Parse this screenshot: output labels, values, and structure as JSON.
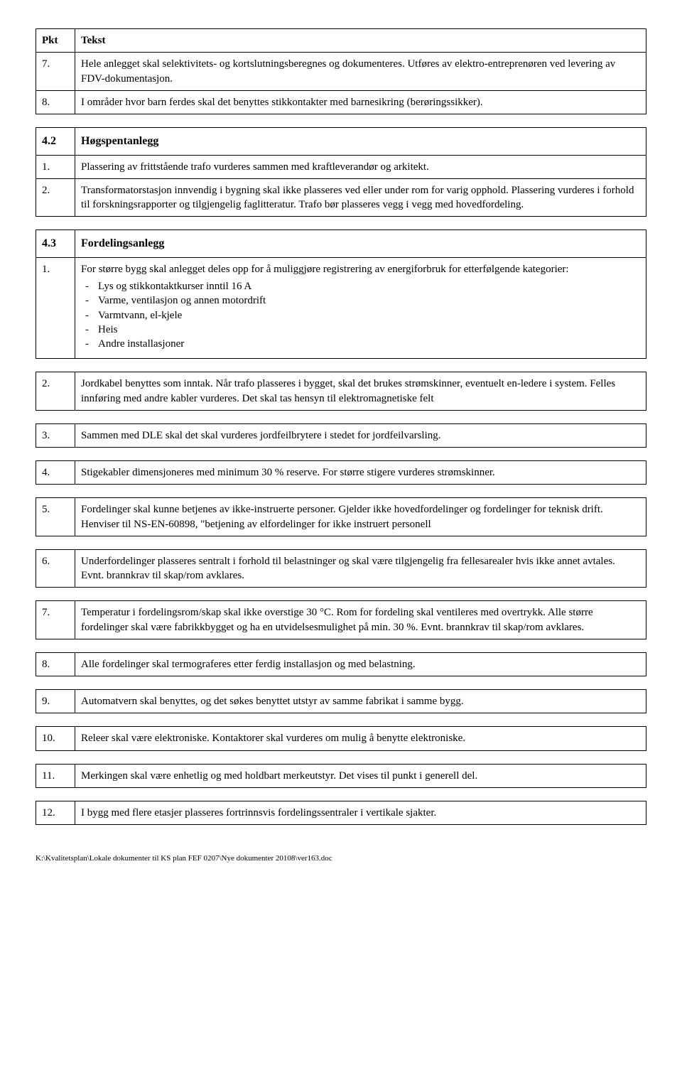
{
  "header": {
    "pkt": "Pkt",
    "tekst": "Tekst"
  },
  "rows_a": [
    {
      "n": "7.",
      "t": "Hele anlegget skal selektivitets- og kortslutningsberegnes og dokumenteres.  Utføres av  elektro-entreprenøren ved levering av FDV-dokumentasjon."
    },
    {
      "n": "8.",
      "t": "I områder hvor barn ferdes skal det benyttes stikkontakter med barnesikring (berøringssikker)."
    }
  ],
  "section42": {
    "num": "4.2",
    "title": "Høgspentanlegg"
  },
  "rows_b": [
    {
      "n": "1.",
      "t": "Plassering av frittstående trafo vurderes sammen med kraftleverandør og arkitekt."
    },
    {
      "n": "2.",
      "t": "Transformatorstasjon innvendig i bygning skal ikke plasseres ved eller under rom for varig opphold. Plassering vurderes i forhold til forskningsrapporter og tilgjengelig faglitteratur. Trafo bør plasseres vegg i vegg med hovedfordeling."
    }
  ],
  "section43": {
    "num": "4.3",
    "title": "Fordelingsanlegg"
  },
  "row_c1": {
    "n": "1.",
    "lead": "For større bygg skal anlegget deles opp for å muliggjøre registrering av energiforbruk for etterfølgende kategorier:",
    "items": [
      "Lys og stikkontaktkurser inntil 16 A",
      "Varme, ventilasjon og annen motordrift",
      "Varmtvann, el-kjele",
      "Heis",
      "Andre installasjoner"
    ]
  },
  "rows_c": [
    {
      "n": "2.",
      "t": "Jordkabel benyttes som inntak.  Når trafo plasseres i bygget, skal det brukes strømskinner, eventuelt en-ledere i system. Felles innføring med andre kabler vurderes. Det skal tas hensyn til elektromagnetiske felt"
    },
    {
      "n": "3.",
      "t": "Sammen med DLE skal det skal vurderes jordfeilbrytere i stedet for jordfeilvarsling."
    },
    {
      "n": "4.",
      "t": "Stigekabler dimensjoneres med minimum 30 % reserve. For større stigere vurderes strømskinner."
    },
    {
      "n": "5.",
      "t": "Fordelinger skal kunne betjenes av ikke-instruerte personer. Gjelder ikke hovedfordelinger og fordelinger for teknisk drift. Henviser til NS-EN-60898, \"betjening av elfordelinger for ikke instruert personell"
    },
    {
      "n": "6.",
      "t": "Underfordelinger plasseres sentralt i forhold til belastninger og skal være tilgjengelig fra fellesarealer hvis ikke annet avtales.  Evnt. brannkrav til skap/rom avklares."
    },
    {
      "n": "7.",
      "t": "Temperatur i fordelingsrom/skap skal ikke overstige 30 °C.  Rom for fordeling skal ventileres med overtrykk.  Alle større fordelinger skal være fabrikkbygget og ha en utvidelsesmulighet på min. 30 %.  Evnt. brannkrav til skap/rom avklares."
    },
    {
      "n": "8.",
      "t": "Alle fordelinger skal termograferes etter ferdig installasjon og med belastning."
    },
    {
      "n": "9.",
      "t": "Automatvern skal benyttes, og det søkes benyttet utstyr av samme fabrikat i samme bygg."
    },
    {
      "n": "10.",
      "t": "Releer skal være elektroniske. Kontaktorer skal vurderes om mulig å benytte elektroniske."
    },
    {
      "n": "11.",
      "t": "Merkingen skal være enhetlig og med holdbart merkeutstyr. Det vises til punkt i generell del."
    },
    {
      "n": "12.",
      "t": "I bygg med flere etasjer plasseres fortrinnsvis fordelingssentraler i vertikale sjakter."
    }
  ],
  "footer": "K:\\Kvalitetsplan\\Lokale dokumenter til KS plan FEF 0207\\Nye dokumenter 20108\\ver163.doc"
}
